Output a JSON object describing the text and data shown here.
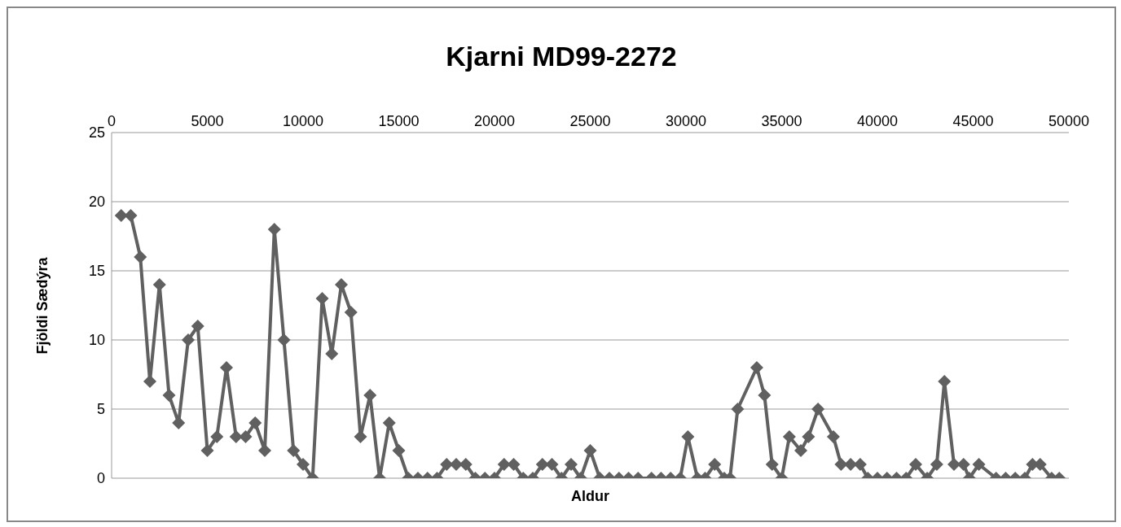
{
  "chart_data": {
    "type": "line",
    "title": "Kjarni MD99-2272",
    "xlabel": "Aldur",
    "ylabel": "Fjöldi Sædýra",
    "x": [
      500,
      1000,
      1500,
      2000,
      2500,
      3000,
      3500,
      4000,
      4500,
      5000,
      5500,
      6000,
      6500,
      7000,
      7500,
      8000,
      8500,
      9000,
      9500,
      10000,
      10500,
      11000,
      11500,
      12000,
      12500,
      13000,
      13500,
      14000,
      14500,
      15000,
      15500,
      16000,
      16500,
      17000,
      17500,
      18000,
      18500,
      19000,
      19500,
      20000,
      20500,
      21000,
      21500,
      22000,
      22500,
      23000,
      23500,
      24000,
      24500,
      25000,
      25500,
      26000,
      26500,
      27000,
      27500,
      28200,
      28700,
      29200,
      29700,
      30100,
      30600,
      31000,
      31500,
      32000,
      32300,
      32700,
      33700,
      34100,
      34500,
      35000,
      35400,
      36000,
      36400,
      36900,
      37700,
      38100,
      38600,
      39100,
      39500,
      40000,
      40500,
      41000,
      41500,
      42000,
      42600,
      43100,
      43500,
      44000,
      44500,
      44800,
      45300,
      46200,
      46700,
      47200,
      47700,
      48100,
      48500,
      49100,
      49500
    ],
    "series": [
      {
        "color": "#606060",
        "values": [
          19,
          19,
          16,
          7,
          14,
          6,
          4,
          10,
          11,
          2,
          3,
          8,
          3,
          3,
          4,
          2,
          18,
          10,
          2,
          1,
          0,
          13,
          9,
          14,
          12,
          3,
          6,
          0,
          4,
          2,
          0,
          0,
          0,
          0,
          1,
          1,
          1,
          0,
          0,
          0,
          1,
          1,
          0,
          0,
          1,
          1,
          0,
          1,
          0,
          2,
          0,
          0,
          0,
          0,
          0,
          0,
          0,
          0,
          0,
          3,
          0,
          0,
          1,
          0,
          0,
          5,
          8,
          6,
          1,
          0,
          3,
          2,
          3,
          5,
          3,
          1,
          1,
          1,
          0,
          0,
          0,
          0,
          0,
          1,
          0,
          1,
          7,
          1,
          1,
          0,
          1,
          0,
          0,
          0,
          0,
          1,
          1,
          0,
          0
        ]
      }
    ],
    "xlim": [
      0,
      50000
    ],
    "xticks": [
      0,
      5000,
      10000,
      15000,
      20000,
      25000,
      30000,
      35000,
      40000,
      45000,
      50000
    ],
    "ylim": [
      0,
      25
    ],
    "yticks": [
      0,
      5,
      10,
      15,
      20,
      25
    ],
    "grid": "y",
    "marker": "diamond",
    "line_style": "solid"
  }
}
